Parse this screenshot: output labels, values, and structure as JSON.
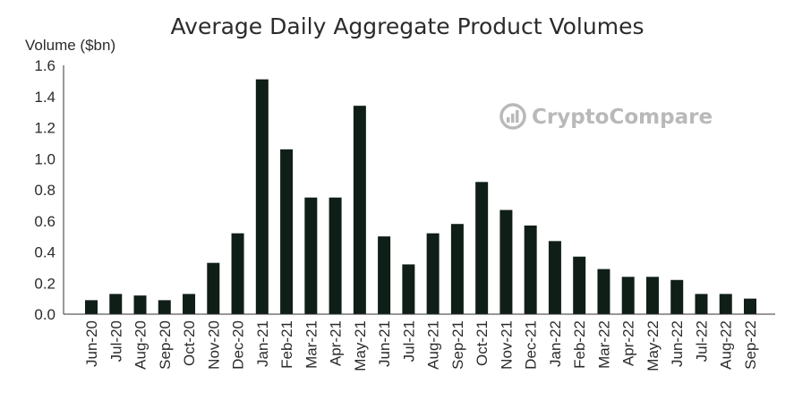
{
  "chart_data": {
    "type": "bar",
    "title": "Average Daily Aggregate Product Volumes",
    "ylabel": "Volume ($bn)",
    "xlabel": "",
    "ylim": [
      0,
      1.6
    ],
    "yticks": [
      "0.0",
      "0.2",
      "0.4",
      "0.6",
      "0.8",
      "1.0",
      "1.2",
      "1.4",
      "1.6"
    ],
    "categories": [
      "Jun-20",
      "Jul-20",
      "Aug-20",
      "Sep-20",
      "Oct-20",
      "Nov-20",
      "Dec-20",
      "Jan-21",
      "Feb-21",
      "Mar-21",
      "Apr-21",
      "May-21",
      "Jun-21",
      "Jul-21",
      "Aug-21",
      "Sep-21",
      "Oct-21",
      "Nov-21",
      "Dec-21",
      "Jan-22",
      "Feb-22",
      "Mar-22",
      "Apr-22",
      "May-22",
      "Jun-22",
      "Jul-22",
      "Aug-22",
      "Sep-22"
    ],
    "values": [
      0.09,
      0.13,
      0.12,
      0.09,
      0.13,
      0.33,
      0.52,
      1.51,
      1.06,
      0.75,
      0.75,
      1.34,
      0.5,
      0.32,
      0.52,
      0.58,
      0.85,
      0.67,
      0.57,
      0.47,
      0.37,
      0.29,
      0.24,
      0.24,
      0.22,
      0.13,
      0.13,
      0.1
    ],
    "bar_color": "#0f1f17",
    "grid": false,
    "legend": "none"
  },
  "watermark": {
    "text": "CryptoCompare",
    "icon": "cryptocompare-logo-icon",
    "color": "#b9b9b9"
  }
}
